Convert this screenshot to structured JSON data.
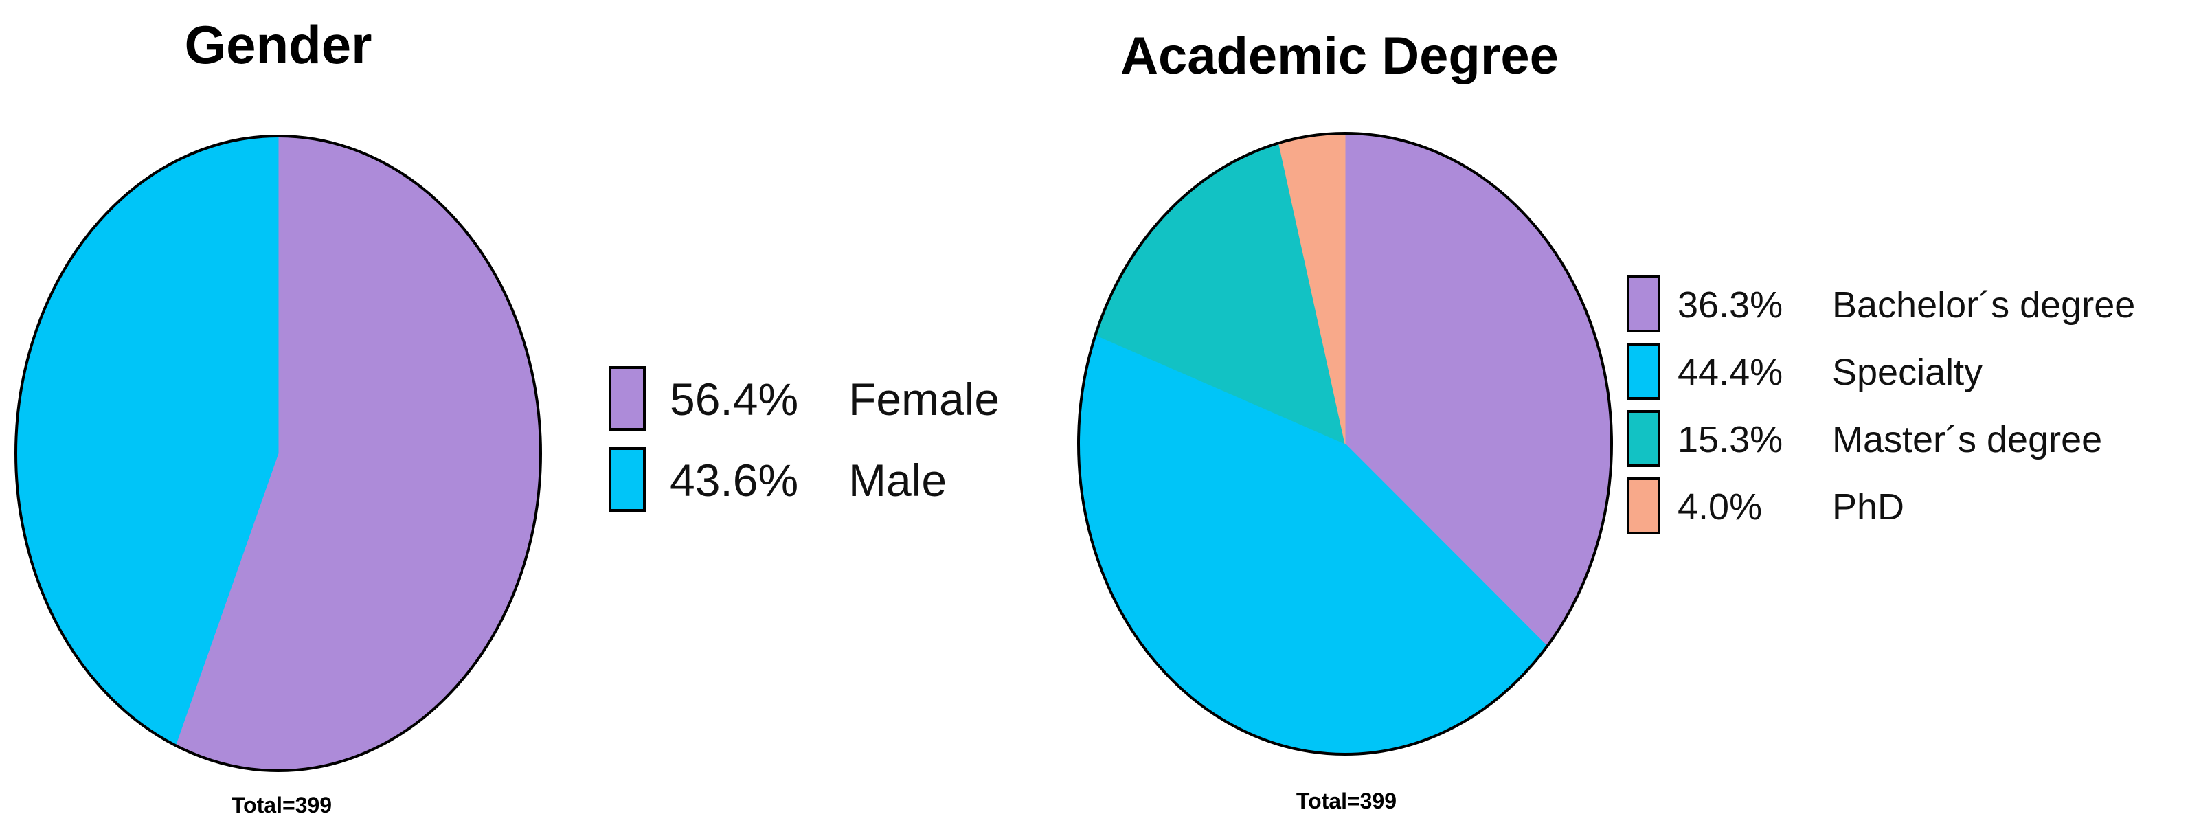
{
  "chart_data": [
    {
      "type": "pie",
      "title": "Gender",
      "total_label": "Total=399",
      "slices": [
        {
          "label": "Female",
          "percent_text": "56.4%",
          "value": 56.4,
          "color": "#AD8BD9"
        },
        {
          "label": "Male",
          "percent_text": "43.6%",
          "value": 43.6,
          "color": "#00C5F8"
        }
      ],
      "legend_position": "right"
    },
    {
      "type": "pie",
      "title": "Academic Degree",
      "total_label": "Total=399",
      "slices": [
        {
          "label": "Bachelor´s degree",
          "percent_text": "36.3%",
          "value": 36.3,
          "color": "#AD8BD9"
        },
        {
          "label": "Specialty",
          "percent_text": "44.4%",
          "value": 44.4,
          "color": "#00C5F8"
        },
        {
          "label": "Master´s degree",
          "percent_text": "15.3%",
          "value": 15.3,
          "color": "#12C2C4"
        },
        {
          "label": "PhD",
          "percent_text": "4.0%",
          "value": 4.0,
          "color": "#F8A98A"
        }
      ],
      "legend_position": "right"
    }
  ]
}
